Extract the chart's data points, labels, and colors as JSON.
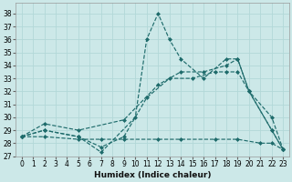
{
  "title": "",
  "xlabel": "Humidex (Indice chaleur)",
  "ylabel": "",
  "background_color": "#cce8e8",
  "grid_color": "#b2d8d8",
  "line_color": "#1e6b6b",
  "ylim": [
    27,
    38.8
  ],
  "xlim": [
    -0.5,
    23.5
  ],
  "yticks": [
    27,
    28,
    29,
    30,
    31,
    32,
    33,
    34,
    35,
    36,
    37,
    38
  ],
  "xticks": [
    0,
    1,
    2,
    3,
    4,
    5,
    6,
    7,
    8,
    9,
    10,
    11,
    12,
    13,
    14,
    15,
    16,
    17,
    18,
    19,
    20,
    21,
    22,
    23
  ],
  "series": [
    {
      "x": [
        0,
        2,
        5,
        7,
        10,
        11,
        12,
        13,
        14,
        16,
        18,
        19,
        20,
        22,
        23
      ],
      "y": [
        28.5,
        29.0,
        28.5,
        27.3,
        30.0,
        36.0,
        38.0,
        36.0,
        34.5,
        33.0,
        34.5,
        34.5,
        32.0,
        29.0,
        27.5
      ]
    },
    {
      "x": [
        0,
        2,
        5,
        7,
        9,
        11,
        13,
        15,
        17,
        18,
        19,
        20,
        22,
        23
      ],
      "y": [
        28.5,
        29.0,
        28.5,
        27.7,
        28.5,
        31.5,
        33.0,
        33.0,
        33.5,
        33.5,
        33.5,
        32.0,
        29.0,
        27.5
      ]
    },
    {
      "x": [
        0,
        2,
        5,
        9,
        12,
        14,
        16,
        18,
        19,
        20,
        22,
        23
      ],
      "y": [
        28.5,
        29.5,
        29.0,
        29.8,
        32.5,
        33.5,
        33.5,
        34.0,
        34.5,
        32.0,
        30.0,
        27.5
      ]
    },
    {
      "x": [
        0,
        2,
        5,
        7,
        9,
        12,
        14,
        17,
        19,
        21,
        22,
        23
      ],
      "y": [
        28.5,
        28.5,
        28.3,
        28.3,
        28.3,
        28.3,
        28.3,
        28.3,
        28.3,
        28.0,
        28.0,
        27.5
      ]
    }
  ]
}
